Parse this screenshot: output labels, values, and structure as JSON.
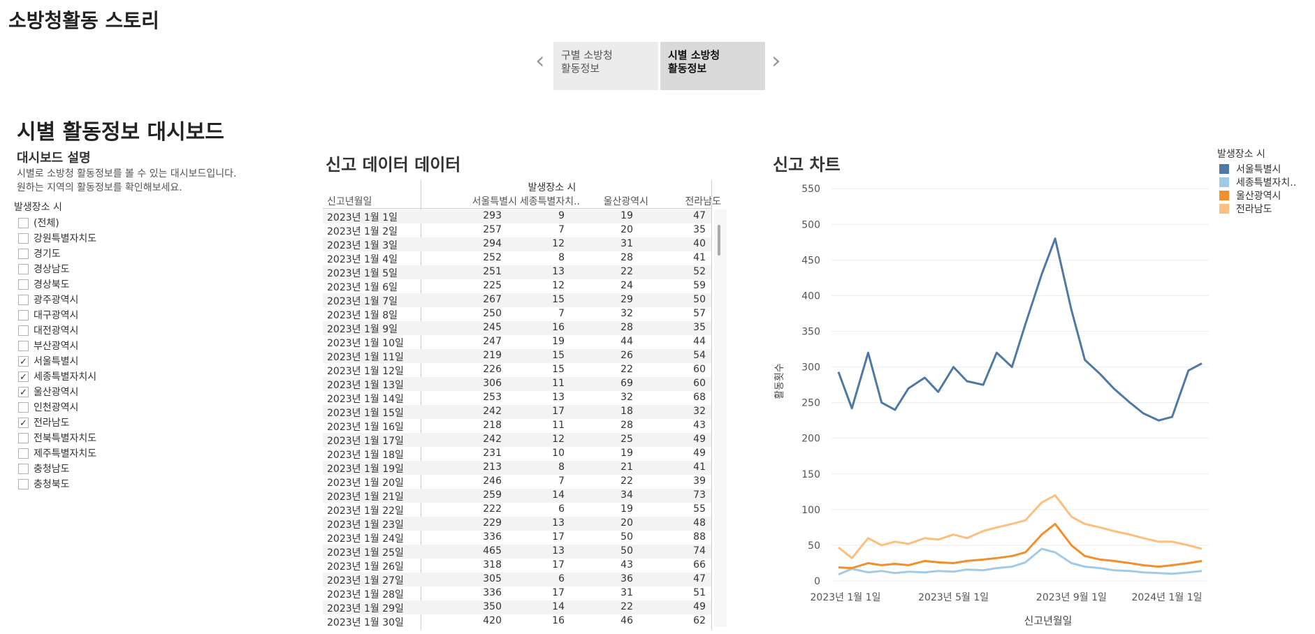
{
  "story": {
    "title": "소방청활동 스토리",
    "tabs": [
      {
        "label": "구별 소방청\n활동정보"
      },
      {
        "label": "시별 소방청\n활동정보"
      }
    ],
    "prev_icon": "chevron-left-icon",
    "next_icon": "chevron-right-icon"
  },
  "dashboard": {
    "title": "시별 활동정보 대시보드",
    "description_title": "대시보드 설명",
    "description_lines": [
      "시별로 소방청 활동정보를 볼 수 있는 대시보드입니다.",
      "원하는 지역의 활동정보를 확인해보세요."
    ]
  },
  "filter": {
    "title": "발생장소 시",
    "items": [
      {
        "label": "(전체)",
        "checked": false
      },
      {
        "label": "강원특별자치도",
        "checked": false
      },
      {
        "label": "경기도",
        "checked": false
      },
      {
        "label": "경상남도",
        "checked": false
      },
      {
        "label": "경상북도",
        "checked": false
      },
      {
        "label": "광주광역시",
        "checked": false
      },
      {
        "label": "대구광역시",
        "checked": false
      },
      {
        "label": "대전광역시",
        "checked": false
      },
      {
        "label": "부산광역시",
        "checked": false
      },
      {
        "label": "서울특별시",
        "checked": true
      },
      {
        "label": "세종특별자치시",
        "checked": true
      },
      {
        "label": "울산광역시",
        "checked": true
      },
      {
        "label": "인천광역시",
        "checked": false
      },
      {
        "label": "전라남도",
        "checked": true
      },
      {
        "label": "전북특별자치도",
        "checked": false
      },
      {
        "label": "제주특별자치도",
        "checked": false
      },
      {
        "label": "충청남도",
        "checked": false
      },
      {
        "label": "충청북도",
        "checked": false
      }
    ]
  },
  "table": {
    "title": "신고 데이터 데이터",
    "group_header": "발생장소 시",
    "row_header": "신고년월일",
    "columns": [
      "서울특별시",
      "세종특별자치..",
      "울산광역시",
      "전라남도"
    ],
    "rows": [
      [
        "2023년 1월 1일",
        "293",
        "9",
        "19",
        "47"
      ],
      [
        "2023년 1월 2일",
        "257",
        "7",
        "20",
        "35"
      ],
      [
        "2023년 1월 3일",
        "294",
        "12",
        "31",
        "40"
      ],
      [
        "2023년 1월 4일",
        "252",
        "8",
        "28",
        "41"
      ],
      [
        "2023년 1월 5일",
        "251",
        "13",
        "22",
        "52"
      ],
      [
        "2023년 1월 6일",
        "225",
        "12",
        "24",
        "59"
      ],
      [
        "2023년 1월 7일",
        "267",
        "15",
        "29",
        "50"
      ],
      [
        "2023년 1월 8일",
        "250",
        "7",
        "32",
        "57"
      ],
      [
        "2023년 1월 9일",
        "245",
        "16",
        "28",
        "35"
      ],
      [
        "2023년 1월 10일",
        "247",
        "19",
        "44",
        "44"
      ],
      [
        "2023년 1월 11일",
        "219",
        "15",
        "26",
        "54"
      ],
      [
        "2023년 1월 12일",
        "226",
        "15",
        "22",
        "60"
      ],
      [
        "2023년 1월 13일",
        "306",
        "11",
        "69",
        "60"
      ],
      [
        "2023년 1월 14일",
        "253",
        "13",
        "32",
        "68"
      ],
      [
        "2023년 1월 15일",
        "242",
        "17",
        "18",
        "32"
      ],
      [
        "2023년 1월 16일",
        "218",
        "11",
        "28",
        "43"
      ],
      [
        "2023년 1월 17일",
        "242",
        "12",
        "25",
        "49"
      ],
      [
        "2023년 1월 18일",
        "231",
        "10",
        "19",
        "49"
      ],
      [
        "2023년 1월 19일",
        "213",
        "8",
        "21",
        "41"
      ],
      [
        "2023년 1월 20일",
        "246",
        "7",
        "22",
        "39"
      ],
      [
        "2023년 1월 21일",
        "259",
        "14",
        "34",
        "73"
      ],
      [
        "2023년 1월 22일",
        "222",
        "6",
        "19",
        "55"
      ],
      [
        "2023년 1월 23일",
        "229",
        "13",
        "20",
        "48"
      ],
      [
        "2023년 1월 24일",
        "336",
        "17",
        "50",
        "88"
      ],
      [
        "2023년 1월 25일",
        "465",
        "13",
        "50",
        "74"
      ],
      [
        "2023년 1월 26일",
        "318",
        "17",
        "43",
        "66"
      ],
      [
        "2023년 1월 27일",
        "305",
        "6",
        "36",
        "47"
      ],
      [
        "2023년 1월 28일",
        "336",
        "17",
        "31",
        "51"
      ],
      [
        "2023년 1월 29일",
        "350",
        "14",
        "22",
        "49"
      ],
      [
        "2023년 1월 30일",
        "420",
        "16",
        "46",
        "62"
      ]
    ]
  },
  "chart_data": {
    "type": "line",
    "title": "신고 차트",
    "xlabel": "신고년월일",
    "ylabel": "활동횟수",
    "ylim": [
      0,
      560
    ],
    "yticks": [
      0,
      50,
      100,
      150,
      200,
      250,
      300,
      350,
      400,
      450,
      500,
      550
    ],
    "x_tick_labels": [
      "2023년 1월 1일",
      "2023년 5월 1일",
      "2023년 9월 1일",
      "2024년 1월 1일"
    ],
    "x": [
      "2023-01-01",
      "2023-01-15",
      "2023-02-01",
      "2023-02-15",
      "2023-03-01",
      "2023-03-15",
      "2023-04-01",
      "2023-04-15",
      "2023-05-01",
      "2023-05-15",
      "2023-06-01",
      "2023-06-15",
      "2023-07-01",
      "2023-07-15",
      "2023-08-01",
      "2023-08-15",
      "2023-09-01",
      "2023-09-15",
      "2023-10-01",
      "2023-10-15",
      "2023-11-01",
      "2023-11-15",
      "2023-12-01",
      "2023-12-15",
      "2024-01-01",
      "2024-01-15"
    ],
    "grid": true,
    "legend": {
      "title": "발생장소 시",
      "position": "top-right"
    },
    "series": [
      {
        "name": "서울특별시",
        "color": "#4e79a7",
        "values": [
          293,
          242,
          320,
          250,
          240,
          270,
          285,
          265,
          300,
          280,
          275,
          320,
          300,
          360,
          430,
          480,
          380,
          310,
          290,
          270,
          250,
          235,
          225,
          230,
          295,
          305
        ]
      },
      {
        "name": "세종특별자치..",
        "color": "#a0cbe8",
        "values": [
          9,
          17,
          12,
          14,
          11,
          13,
          12,
          14,
          13,
          16,
          15,
          18,
          20,
          26,
          45,
          40,
          25,
          20,
          18,
          15,
          14,
          12,
          11,
          10,
          12,
          14
        ]
      },
      {
        "name": "울산광역시",
        "color": "#f28e2b",
        "values": [
          19,
          18,
          25,
          22,
          24,
          22,
          28,
          26,
          25,
          28,
          30,
          32,
          35,
          40,
          65,
          80,
          50,
          35,
          30,
          28,
          25,
          22,
          20,
          22,
          25,
          28
        ]
      },
      {
        "name": "전라남도",
        "color": "#ffbe7d",
        "values": [
          47,
          32,
          60,
          50,
          55,
          52,
          60,
          58,
          65,
          60,
          70,
          75,
          80,
          85,
          110,
          120,
          90,
          80,
          75,
          70,
          65,
          60,
          55,
          55,
          50,
          45
        ]
      }
    ]
  }
}
